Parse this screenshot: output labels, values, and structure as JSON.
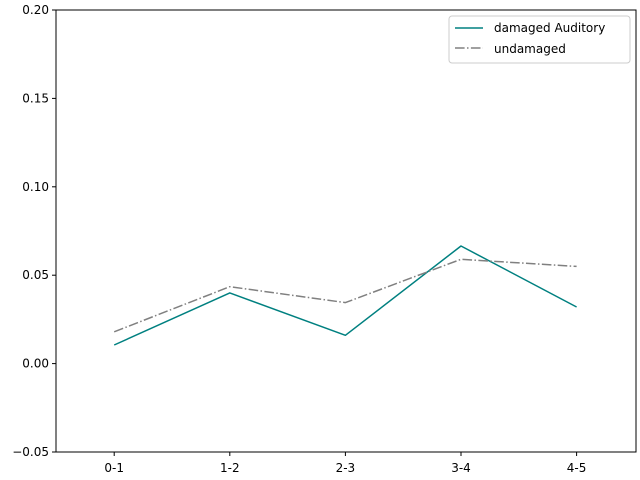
{
  "chart_data": {
    "type": "line",
    "categories": [
      "0-1",
      "1-2",
      "2-3",
      "3-4",
      "4-5"
    ],
    "series": [
      {
        "name": "damaged Auditory",
        "values": [
          0.0105,
          0.04,
          0.016,
          0.0665,
          0.032
        ],
        "color": "#008080",
        "style": "solid"
      },
      {
        "name": "undamaged",
        "values": [
          0.018,
          0.0435,
          0.0345,
          0.059,
          0.055
        ],
        "color": "#808080",
        "style": "dashdot"
      }
    ],
    "ylim": [
      -0.05,
      0.2
    ],
    "yticks": [
      -0.05,
      0.0,
      0.05,
      0.1,
      0.15,
      0.2
    ],
    "ytick_labels": [
      "−0.05",
      "0.00",
      "0.05",
      "0.10",
      "0.15",
      "0.20"
    ],
    "legend_position": "top-right",
    "grid": false
  }
}
